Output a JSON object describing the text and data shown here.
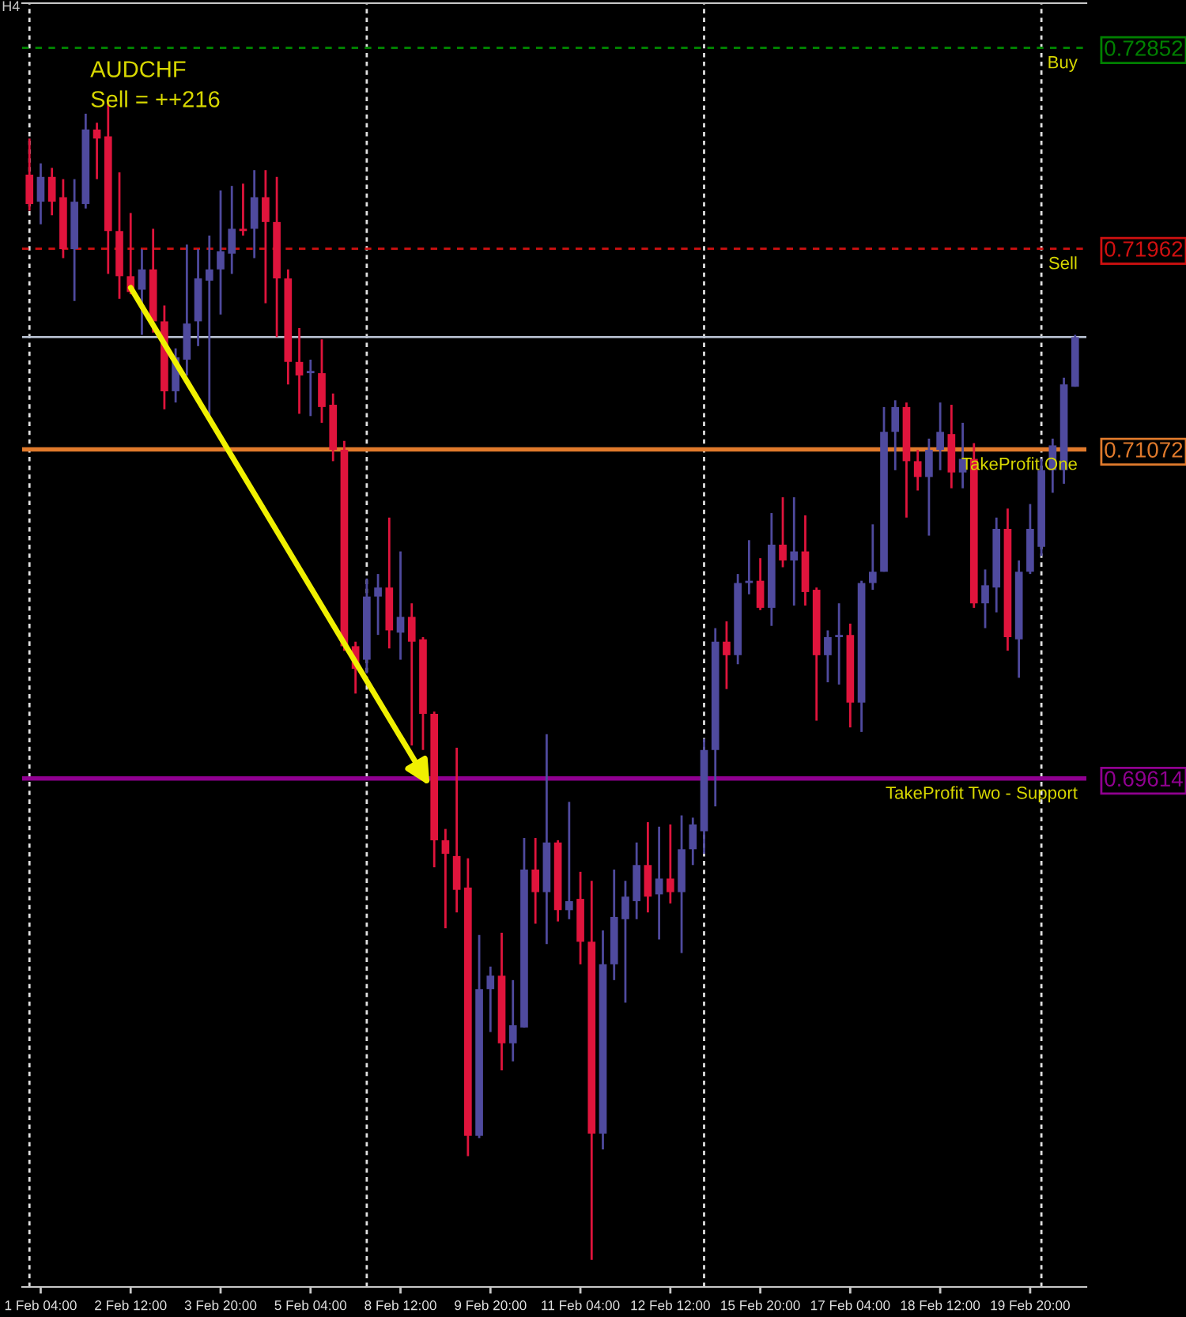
{
  "chart_data": {
    "type": "candlestick",
    "title": "AUDCHF",
    "subtitle": "Sell = ++216",
    "annotations": [
      "H4"
    ],
    "categories": [
      null,
      "1 Feb 04:00",
      null,
      null,
      null,
      null,
      null,
      null,
      null,
      "2 Feb 12:00",
      null,
      null,
      null,
      null,
      null,
      null,
      null,
      "3 Feb 20:00",
      null,
      null,
      null,
      null,
      null,
      null,
      null,
      "5 Feb 04:00",
      null,
      null,
      null,
      null,
      null,
      null,
      null,
      "8 Feb 12:00",
      null,
      null,
      null,
      null,
      null,
      null,
      null,
      "9 Feb 20:00",
      null,
      null,
      null,
      null,
      null,
      null,
      null,
      "11 Feb 04:00",
      null,
      null,
      null,
      null,
      null,
      null,
      null,
      "12 Feb 12:00",
      null,
      null,
      null,
      null,
      null,
      null,
      null,
      "15 Feb 20:00",
      null,
      null,
      null,
      null,
      null,
      null,
      null,
      "17 Feb 04:00",
      null,
      null,
      null,
      null,
      null,
      null,
      null,
      "18 Feb 12:00",
      null,
      null,
      null,
      null,
      null,
      null,
      null,
      "19 Feb 20:00",
      null,
      null,
      null,
      null
    ],
    "ohlc": [
      [
        0.7229,
        0.7245,
        0.7213,
        0.7216
      ],
      [
        0.7217,
        0.7234,
        0.7207,
        0.7228
      ],
      [
        0.7228,
        0.7232,
        0.7211,
        0.7217
      ],
      [
        0.7219,
        0.7227,
        0.7192,
        0.7196
      ],
      [
        0.7196,
        0.7227,
        0.7173,
        0.7217
      ],
      [
        0.7216,
        0.7256,
        0.7214,
        0.7249
      ],
      [
        0.7249,
        0.7252,
        0.7227,
        0.7245
      ],
      [
        0.7246,
        0.7262,
        0.7185,
        0.7204
      ],
      [
        0.7204,
        0.723,
        0.7174,
        0.7184
      ],
      [
        0.7184,
        0.7212,
        0.7176,
        0.7177
      ],
      [
        0.7178,
        0.7196,
        0.7158,
        0.7187
      ],
      [
        0.7187,
        0.7205,
        0.7159,
        0.7164
      ],
      [
        0.7164,
        0.7171,
        0.7125,
        0.7133
      ],
      [
        0.7133,
        0.7152,
        0.7128,
        0.7148
      ],
      [
        0.7147,
        0.7198,
        0.714,
        0.7163
      ],
      [
        0.7164,
        0.7196,
        0.7153,
        0.7183
      ],
      [
        0.7182,
        0.7202,
        0.7121,
        0.7187
      ],
      [
        0.7187,
        0.7222,
        0.7167,
        0.7195
      ],
      [
        0.7194,
        0.7224,
        0.7185,
        0.7205
      ],
      [
        0.7205,
        0.7225,
        0.7202,
        0.7204
      ],
      [
        0.7205,
        0.7231,
        0.7192,
        0.7219
      ],
      [
        0.7219,
        0.7231,
        0.7172,
        0.7208
      ],
      [
        0.7208,
        0.7228,
        0.7157,
        0.7183
      ],
      [
        0.7183,
        0.7187,
        0.7136,
        0.7146
      ],
      [
        0.7146,
        0.7161,
        0.7123,
        0.714
      ],
      [
        0.7141,
        0.7147,
        0.7122,
        0.7142
      ],
      [
        0.7141,
        0.7156,
        0.7119,
        0.7126
      ],
      [
        0.7127,
        0.7132,
        0.7102,
        0.7107
      ],
      [
        0.7107,
        0.7111,
        0.7018,
        0.702
      ],
      [
        0.702,
        0.7022,
        0.6999,
        0.701
      ],
      [
        0.7014,
        0.705,
        0.7008,
        0.7042
      ],
      [
        0.7042,
        0.7052,
        0.7025,
        0.7046
      ],
      [
        0.7046,
        0.7077,
        0.7019,
        0.7027
      ],
      [
        0.7026,
        0.7062,
        0.7014,
        0.7033
      ],
      [
        0.7033,
        0.7039,
        0.6976,
        0.7022
      ],
      [
        0.7023,
        0.7024,
        0.6974,
        0.699
      ],
      [
        0.699,
        0.6991,
        0.6922,
        0.6934
      ],
      [
        0.6934,
        0.6939,
        0.6895,
        0.6928
      ],
      [
        0.6927,
        0.6975,
        0.6902,
        0.6912
      ],
      [
        0.6913,
        0.6926,
        0.6794,
        0.6803
      ],
      [
        0.6803,
        0.6892,
        0.6802,
        0.6868
      ],
      [
        0.6868,
        0.6878,
        0.6849,
        0.6874
      ],
      [
        0.6874,
        0.6893,
        0.6832,
        0.6844
      ],
      [
        0.6844,
        0.6872,
        0.6836,
        0.6852
      ],
      [
        0.6851,
        0.6935,
        0.6851,
        0.6921
      ],
      [
        0.6921,
        0.6935,
        0.6897,
        0.6911
      ],
      [
        0.6911,
        0.6981,
        0.6888,
        0.6933
      ],
      [
        0.6933,
        0.6934,
        0.6898,
        0.6903
      ],
      [
        0.6903,
        0.6951,
        0.6899,
        0.6907
      ],
      [
        0.6908,
        0.692,
        0.6879,
        0.6889
      ],
      [
        0.6889,
        0.6916,
        0.6748,
        0.6804
      ],
      [
        0.6804,
        0.6894,
        0.6797,
        0.6879
      ],
      [
        0.6879,
        0.6921,
        0.6872,
        0.69
      ],
      [
        0.6899,
        0.6916,
        0.6862,
        0.6909
      ],
      [
        0.6907,
        0.6933,
        0.6899,
        0.6923
      ],
      [
        0.6923,
        0.6942,
        0.6902,
        0.6909
      ],
      [
        0.691,
        0.694,
        0.689,
        0.6917
      ],
      [
        0.6917,
        0.6941,
        0.6906,
        0.6911
      ],
      [
        0.6911,
        0.6945,
        0.6884,
        0.693
      ],
      [
        0.693,
        0.6944,
        0.6923,
        0.6941
      ],
      [
        0.6938,
        0.6979,
        0.6928,
        0.6974
      ],
      [
        0.6974,
        0.7028,
        0.6949,
        0.7022
      ],
      [
        0.7022,
        0.7031,
        0.7001,
        0.7016
      ],
      [
        0.7016,
        0.7052,
        0.7012,
        0.7048
      ],
      [
        0.7048,
        0.7067,
        0.7043,
        0.7049
      ],
      [
        0.7049,
        0.7059,
        0.7036,
        0.7037
      ],
      [
        0.7037,
        0.7079,
        0.7029,
        0.7065
      ],
      [
        0.7065,
        0.7086,
        0.7055,
        0.7058
      ],
      [
        0.7058,
        0.7086,
        0.7038,
        0.7062
      ],
      [
        0.7062,
        0.7078,
        0.7038,
        0.7044
      ],
      [
        0.7045,
        0.7046,
        0.6987,
        0.7016
      ],
      [
        0.7016,
        0.7027,
        0.7004,
        0.7024
      ],
      [
        0.7024,
        0.7039,
        0.7003,
        0.7025
      ],
      [
        0.7025,
        0.703,
        0.6984,
        0.6995
      ],
      [
        0.6995,
        0.7049,
        0.6982,
        0.7048
      ],
      [
        0.7048,
        0.7074,
        0.7045,
        0.7053
      ],
      [
        0.7053,
        0.7126,
        0.7053,
        0.7115
      ],
      [
        0.7115,
        0.7129,
        0.7098,
        0.7126
      ],
      [
        0.7126,
        0.7128,
        0.7077,
        0.7102
      ],
      [
        0.7102,
        0.7107,
        0.7089,
        0.7095
      ],
      [
        0.7095,
        0.7112,
        0.7069,
        0.7107
      ],
      [
        0.7107,
        0.7128,
        0.7098,
        0.7115
      ],
      [
        0.7114,
        0.7127,
        0.709,
        0.7097
      ],
      [
        0.7097,
        0.7119,
        0.709,
        0.7103
      ],
      [
        0.7103,
        0.711,
        0.7037,
        0.7039
      ],
      [
        0.7039,
        0.7054,
        0.7028,
        0.7047
      ],
      [
        0.7046,
        0.7077,
        0.7035,
        0.7072
      ],
      [
        0.7072,
        0.7081,
        0.7018,
        0.7024
      ],
      [
        0.7023,
        0.7058,
        0.7006,
        0.7053
      ],
      [
        0.7053,
        0.7083,
        0.7052,
        0.7072
      ],
      [
        0.7064,
        0.7103,
        0.706,
        0.7098
      ],
      [
        0.7098,
        0.7112,
        0.7088,
        0.7109
      ],
      [
        0.7098,
        0.7139,
        0.7092,
        0.7136
      ],
      [
        0.7135,
        0.7158,
        0.7135,
        0.7157
      ]
    ],
    "colors": [
      "#e0143c",
      "#4f4a9e",
      "#e0143c",
      "#e0143c",
      "#4f4a9e",
      "#4f4a9e",
      "#e0143c",
      "#e0143c",
      "#e0143c",
      "#e0143c",
      "#4f4a9e",
      "#e0143c",
      "#e0143c",
      "#4f4a9e",
      "#4f4a9e",
      "#4f4a9e",
      "#4f4a9e",
      "#4f4a9e",
      "#4f4a9e",
      "#e0143c",
      "#4f4a9e",
      "#e0143c",
      "#e0143c",
      "#e0143c",
      "#e0143c",
      "#4f4a9e",
      "#e0143c",
      "#e0143c",
      "#e0143c",
      "#e0143c",
      "#4f4a9e",
      "#4f4a9e",
      "#e0143c",
      "#4f4a9e",
      "#e0143c",
      "#e0143c",
      "#e0143c",
      "#e0143c",
      "#e0143c",
      "#e0143c",
      "#4f4a9e",
      "#4f4a9e",
      "#e0143c",
      "#4f4a9e",
      "#4f4a9e",
      "#e0143c",
      "#4f4a9e",
      "#e0143c",
      "#4f4a9e",
      "#e0143c",
      "#e0143c",
      "#4f4a9e",
      "#4f4a9e",
      "#4f4a9e",
      "#4f4a9e",
      "#e0143c",
      "#4f4a9e",
      "#e0143c",
      "#4f4a9e",
      "#4f4a9e",
      "#4f4a9e",
      "#4f4a9e",
      "#e0143c",
      "#4f4a9e",
      "#4f4a9e",
      "#e0143c",
      "#4f4a9e",
      "#e0143c",
      "#4f4a9e",
      "#e0143c",
      "#e0143c",
      "#4f4a9e",
      "#4f4a9e",
      "#e0143c",
      "#4f4a9e",
      "#4f4a9e",
      "#4f4a9e",
      "#4f4a9e",
      "#e0143c",
      "#e0143c",
      "#4f4a9e",
      "#4f4a9e",
      "#e0143c",
      "#4f4a9e",
      "#e0143c",
      "#4f4a9e",
      "#4f4a9e",
      "#e0143c",
      "#4f4a9e",
      "#4f4a9e",
      "#4f4a9e",
      "#4f4a9e",
      "#4f4a9e",
      "#4f4a9e"
    ],
    "ylim": [
      0.6736,
      0.7305
    ],
    "yticks": [
      0.72852,
      0.71962,
      0.71072,
      0.69614
    ],
    "grid": "x",
    "ref_lines": [
      {
        "axis": "y",
        "value": 0.72852,
        "label": "Buy",
        "color": "#008000",
        "line_style": "dashed"
      },
      {
        "axis": "y",
        "value": 0.71962,
        "label": "Sell",
        "color": "#d01010",
        "line_style": "dashed"
      },
      {
        "axis": "y",
        "value": 0.71072,
        "label": "TakeProfit One",
        "color": "#e07a2c",
        "line_style": "solid"
      },
      {
        "axis": "y",
        "value": 0.69614,
        "label": "TakeProfit Two - Support",
        "color": "#900090",
        "line_style": "solid"
      },
      {
        "axis": "y",
        "value": 0.7157,
        "color": "#b4bccc",
        "line_style": "solid"
      }
    ]
  }
}
